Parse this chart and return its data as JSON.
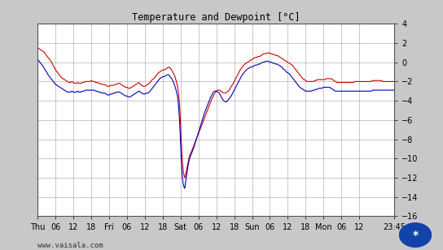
{
  "title": "Temperature and Dewpoint [°C]",
  "bg_color": "#c8c8c8",
  "plot_bg_color": "#ffffff",
  "grid_color": "#b0b0b0",
  "ylim": [
    -16,
    4
  ],
  "yticks": [
    -16,
    -14,
    -12,
    -10,
    -8,
    -6,
    -4,
    -2,
    0,
    2,
    4
  ],
  "xlabel_bottom": "www.vaisala.com",
  "line_red_color": "#cc0000",
  "line_blue_color": "#0000bb",
  "line_width": 0.8,
  "xtick_labels": [
    "Thu",
    "06",
    "12",
    "18",
    "Fri",
    "06",
    "12",
    "18",
    "Sat",
    "06",
    "12",
    "18",
    "Sun",
    "06",
    "12",
    "18",
    "Mon",
    "06",
    "12",
    "23:45"
  ],
  "xtick_positions": [
    0,
    6,
    12,
    18,
    24,
    30,
    36,
    42,
    48,
    54,
    60,
    66,
    72,
    78,
    84,
    90,
    96,
    102,
    108,
    119.75
  ],
  "x_total": 119.75,
  "red_data": [
    [
      0,
      1.5
    ],
    [
      0.5,
      1.4
    ],
    [
      1,
      1.3
    ],
    [
      1.5,
      1.2
    ],
    [
      2,
      1.1
    ],
    [
      2.5,
      0.9
    ],
    [
      3,
      0.7
    ],
    [
      3.5,
      0.5
    ],
    [
      4,
      0.3
    ],
    [
      4.5,
      0.1
    ],
    [
      5,
      -0.2
    ],
    [
      5.5,
      -0.5
    ],
    [
      6,
      -0.8
    ],
    [
      6.5,
      -1.0
    ],
    [
      7,
      -1.2
    ],
    [
      7.5,
      -1.4
    ],
    [
      8,
      -1.6
    ],
    [
      8.5,
      -1.7
    ],
    [
      9,
      -1.8
    ],
    [
      9.5,
      -1.9
    ],
    [
      10,
      -2.0
    ],
    [
      10.5,
      -2.1
    ],
    [
      11,
      -2.1
    ],
    [
      11.5,
      -2.0
    ],
    [
      12,
      -2.1
    ],
    [
      12.5,
      -2.2
    ],
    [
      13,
      -2.2
    ],
    [
      13.5,
      -2.1
    ],
    [
      14,
      -2.2
    ],
    [
      14.5,
      -2.2
    ],
    [
      15,
      -2.1
    ],
    [
      15.5,
      -2.1
    ],
    [
      16,
      -2.0
    ],
    [
      16.5,
      -2.0
    ],
    [
      17,
      -2.0
    ],
    [
      17.5,
      -2.0
    ],
    [
      18,
      -1.9
    ],
    [
      18.5,
      -2.0
    ],
    [
      19,
      -2.0
    ],
    [
      19.5,
      -2.1
    ],
    [
      20,
      -2.1
    ],
    [
      20.5,
      -2.2
    ],
    [
      21,
      -2.2
    ],
    [
      21.5,
      -2.3
    ],
    [
      22,
      -2.3
    ],
    [
      22.5,
      -2.3
    ],
    [
      23,
      -2.4
    ],
    [
      23.5,
      -2.5
    ],
    [
      24,
      -2.5
    ],
    [
      24.5,
      -2.4
    ],
    [
      25,
      -2.4
    ],
    [
      25.5,
      -2.4
    ],
    [
      26,
      -2.3
    ],
    [
      26.5,
      -2.3
    ],
    [
      27,
      -2.2
    ],
    [
      27.5,
      -2.2
    ],
    [
      28,
      -2.3
    ],
    [
      28.5,
      -2.4
    ],
    [
      29,
      -2.5
    ],
    [
      29.5,
      -2.6
    ],
    [
      30,
      -2.6
    ],
    [
      30.5,
      -2.7
    ],
    [
      31,
      -2.7
    ],
    [
      31.5,
      -2.6
    ],
    [
      32,
      -2.5
    ],
    [
      32.5,
      -2.4
    ],
    [
      33,
      -2.3
    ],
    [
      33.5,
      -2.2
    ],
    [
      34,
      -2.1
    ],
    [
      34.5,
      -2.3
    ],
    [
      35,
      -2.4
    ],
    [
      35.5,
      -2.5
    ],
    [
      36,
      -2.5
    ],
    [
      36.5,
      -2.4
    ],
    [
      37,
      -2.3
    ],
    [
      37.5,
      -2.2
    ],
    [
      38,
      -2.0
    ],
    [
      38.5,
      -1.8
    ],
    [
      39,
      -1.7
    ],
    [
      39.5,
      -1.5
    ],
    [
      40,
      -1.3
    ],
    [
      40.5,
      -1.1
    ],
    [
      41,
      -1.0
    ],
    [
      41.5,
      -0.9
    ],
    [
      42,
      -0.8
    ],
    [
      42.5,
      -0.8
    ],
    [
      43,
      -0.7
    ],
    [
      43.5,
      -0.6
    ],
    [
      44,
      -0.5
    ],
    [
      44.5,
      -0.6
    ],
    [
      45,
      -0.8
    ],
    [
      45.5,
      -1.1
    ],
    [
      46,
      -1.4
    ],
    [
      46.5,
      -1.9
    ],
    [
      47,
      -2.5
    ],
    [
      47.3,
      -3.2
    ],
    [
      47.6,
      -4.2
    ],
    [
      47.8,
      -5.2
    ],
    [
      48.0,
      -6.5
    ],
    [
      48.2,
      -8.0
    ],
    [
      48.4,
      -9.3
    ],
    [
      48.6,
      -10.3
    ],
    [
      48.8,
      -11.0
    ],
    [
      49.0,
      -11.5
    ],
    [
      49.2,
      -11.8
    ],
    [
      49.4,
      -12.0
    ],
    [
      49.6,
      -11.8
    ],
    [
      49.8,
      -11.5
    ],
    [
      50.0,
      -11.2
    ],
    [
      50.2,
      -10.9
    ],
    [
      50.4,
      -10.6
    ],
    [
      50.6,
      -10.3
    ],
    [
      50.8,
      -10.0
    ],
    [
      51.0,
      -9.7
    ],
    [
      51.5,
      -9.4
    ],
    [
      52.0,
      -9.0
    ],
    [
      52.5,
      -8.6
    ],
    [
      53.0,
      -8.2
    ],
    [
      53.5,
      -7.8
    ],
    [
      54.0,
      -7.4
    ],
    [
      54.5,
      -7.0
    ],
    [
      55.0,
      -6.6
    ],
    [
      55.5,
      -6.2
    ],
    [
      56.0,
      -5.8
    ],
    [
      56.5,
      -5.4
    ],
    [
      57.0,
      -5.0
    ],
    [
      57.5,
      -4.6
    ],
    [
      58.0,
      -4.2
    ],
    [
      58.5,
      -3.8
    ],
    [
      59.0,
      -3.5
    ],
    [
      59.5,
      -3.2
    ],
    [
      60.0,
      -3.0
    ],
    [
      60.5,
      -2.9
    ],
    [
      61.0,
      -2.9
    ],
    [
      61.5,
      -3.0
    ],
    [
      62.0,
      -3.1
    ],
    [
      62.5,
      -3.2
    ],
    [
      63.0,
      -3.2
    ],
    [
      63.5,
      -3.1
    ],
    [
      64.0,
      -3.0
    ],
    [
      64.5,
      -2.8
    ],
    [
      65.0,
      -2.5
    ],
    [
      65.5,
      -2.3
    ],
    [
      66.0,
      -2.0
    ],
    [
      66.5,
      -1.7
    ],
    [
      67.0,
      -1.4
    ],
    [
      67.5,
      -1.1
    ],
    [
      68.0,
      -0.8
    ],
    [
      68.5,
      -0.6
    ],
    [
      69.0,
      -0.4
    ],
    [
      69.5,
      -0.2
    ],
    [
      70.0,
      -0.1
    ],
    [
      70.5,
      0.0
    ],
    [
      71.0,
      0.1
    ],
    [
      71.5,
      0.2
    ],
    [
      72.0,
      0.3
    ],
    [
      72.5,
      0.4
    ],
    [
      73.0,
      0.5
    ],
    [
      73.5,
      0.5
    ],
    [
      74.0,
      0.6
    ],
    [
      74.5,
      0.6
    ],
    [
      75.0,
      0.7
    ],
    [
      75.5,
      0.8
    ],
    [
      76.0,
      0.9
    ],
    [
      76.5,
      0.9
    ],
    [
      77.0,
      0.9
    ],
    [
      77.5,
      1.0
    ],
    [
      78.0,
      0.9
    ],
    [
      78.5,
      0.9
    ],
    [
      79.0,
      0.8
    ],
    [
      79.5,
      0.8
    ],
    [
      80.0,
      0.7
    ],
    [
      80.5,
      0.7
    ],
    [
      81.0,
      0.6
    ],
    [
      81.5,
      0.5
    ],
    [
      82.0,
      0.4
    ],
    [
      82.5,
      0.3
    ],
    [
      83.0,
      0.2
    ],
    [
      83.5,
      0.1
    ],
    [
      84.0,
      0.0
    ],
    [
      84.5,
      -0.1
    ],
    [
      85.0,
      -0.2
    ],
    [
      85.5,
      -0.3
    ],
    [
      86.0,
      -0.5
    ],
    [
      86.5,
      -0.7
    ],
    [
      87.0,
      -0.9
    ],
    [
      87.5,
      -1.1
    ],
    [
      88.0,
      -1.3
    ],
    [
      88.5,
      -1.5
    ],
    [
      89.0,
      -1.7
    ],
    [
      89.5,
      -1.8
    ],
    [
      90.0,
      -1.9
    ],
    [
      90.5,
      -2.0
    ],
    [
      91.0,
      -2.0
    ],
    [
      91.5,
      -2.0
    ],
    [
      92.0,
      -2.0
    ],
    [
      92.5,
      -2.0
    ],
    [
      93.0,
      -1.9
    ],
    [
      93.5,
      -1.9
    ],
    [
      94.0,
      -1.8
    ],
    [
      94.5,
      -1.8
    ],
    [
      95.0,
      -1.8
    ],
    [
      95.5,
      -1.8
    ],
    [
      96.0,
      -1.8
    ],
    [
      96.5,
      -1.8
    ],
    [
      97.0,
      -1.7
    ],
    [
      97.5,
      -1.7
    ],
    [
      98.0,
      -1.7
    ],
    [
      98.5,
      -1.7
    ],
    [
      99.0,
      -1.8
    ],
    [
      99.5,
      -1.9
    ],
    [
      100.0,
      -2.0
    ],
    [
      100.5,
      -2.1
    ],
    [
      101.0,
      -2.1
    ],
    [
      101.5,
      -2.1
    ],
    [
      102.0,
      -2.1
    ],
    [
      102.5,
      -2.1
    ],
    [
      103.0,
      -2.1
    ],
    [
      103.5,
      -2.1
    ],
    [
      104.0,
      -2.1
    ],
    [
      104.5,
      -2.1
    ],
    [
      105.0,
      -2.1
    ],
    [
      105.5,
      -2.1
    ],
    [
      106.0,
      -2.1
    ],
    [
      106.5,
      -2.0
    ],
    [
      107.0,
      -2.0
    ],
    [
      107.5,
      -2.0
    ],
    [
      108.0,
      -2.0
    ],
    [
      108.5,
      -2.0
    ],
    [
      109.0,
      -2.0
    ],
    [
      109.5,
      -2.0
    ],
    [
      110.0,
      -2.0
    ],
    [
      110.5,
      -2.0
    ],
    [
      111.0,
      -2.0
    ],
    [
      111.5,
      -2.0
    ],
    [
      112.0,
      -2.0
    ],
    [
      112.5,
      -1.9
    ],
    [
      113.0,
      -1.9
    ],
    [
      113.5,
      -1.9
    ],
    [
      114.0,
      -1.9
    ],
    [
      114.5,
      -1.9
    ],
    [
      115.0,
      -1.9
    ],
    [
      115.5,
      -1.9
    ],
    [
      116.0,
      -2.0
    ],
    [
      116.5,
      -2.0
    ],
    [
      117.0,
      -2.0
    ],
    [
      117.5,
      -2.0
    ],
    [
      118.0,
      -2.0
    ],
    [
      118.5,
      -2.0
    ],
    [
      119.0,
      -2.0
    ],
    [
      119.75,
      -2.0
    ]
  ],
  "blue_data": [
    [
      0,
      0.3
    ],
    [
      0.5,
      0.1
    ],
    [
      1,
      -0.1
    ],
    [
      1.5,
      -0.3
    ],
    [
      2,
      -0.5
    ],
    [
      2.5,
      -0.8
    ],
    [
      3,
      -1.0
    ],
    [
      3.5,
      -1.3
    ],
    [
      4,
      -1.5
    ],
    [
      4.5,
      -1.7
    ],
    [
      5,
      -1.9
    ],
    [
      5.5,
      -2.1
    ],
    [
      6,
      -2.3
    ],
    [
      6.5,
      -2.4
    ],
    [
      7,
      -2.5
    ],
    [
      7.5,
      -2.6
    ],
    [
      8,
      -2.7
    ],
    [
      8.5,
      -2.8
    ],
    [
      9,
      -2.9
    ],
    [
      9.5,
      -3.0
    ],
    [
      10,
      -3.1
    ],
    [
      10.5,
      -3.1
    ],
    [
      11,
      -3.1
    ],
    [
      11.5,
      -3.0
    ],
    [
      12,
      -3.1
    ],
    [
      12.5,
      -3.1
    ],
    [
      13,
      -3.1
    ],
    [
      13.5,
      -3.0
    ],
    [
      14,
      -3.1
    ],
    [
      14.5,
      -3.1
    ],
    [
      15,
      -3.0
    ],
    [
      15.5,
      -3.0
    ],
    [
      16,
      -2.9
    ],
    [
      16.5,
      -2.9
    ],
    [
      17,
      -2.9
    ],
    [
      17.5,
      -2.9
    ],
    [
      18,
      -2.9
    ],
    [
      18.5,
      -2.9
    ],
    [
      19,
      -2.9
    ],
    [
      19.5,
      -3.0
    ],
    [
      20,
      -3.0
    ],
    [
      20.5,
      -3.1
    ],
    [
      21,
      -3.1
    ],
    [
      21.5,
      -3.2
    ],
    [
      22,
      -3.2
    ],
    [
      22.5,
      -3.2
    ],
    [
      23,
      -3.3
    ],
    [
      23.5,
      -3.4
    ],
    [
      24,
      -3.4
    ],
    [
      24.5,
      -3.3
    ],
    [
      25,
      -3.3
    ],
    [
      25.5,
      -3.2
    ],
    [
      26,
      -3.2
    ],
    [
      26.5,
      -3.1
    ],
    [
      27,
      -3.1
    ],
    [
      27.5,
      -3.1
    ],
    [
      28,
      -3.2
    ],
    [
      28.5,
      -3.3
    ],
    [
      29,
      -3.4
    ],
    [
      29.5,
      -3.5
    ],
    [
      30,
      -3.5
    ],
    [
      30.5,
      -3.6
    ],
    [
      31,
      -3.6
    ],
    [
      31.5,
      -3.5
    ],
    [
      32,
      -3.4
    ],
    [
      32.5,
      -3.3
    ],
    [
      33,
      -3.2
    ],
    [
      33.5,
      -3.1
    ],
    [
      34,
      -3.0
    ],
    [
      34.5,
      -3.1
    ],
    [
      35,
      -3.2
    ],
    [
      35.5,
      -3.3
    ],
    [
      36,
      -3.3
    ],
    [
      36.5,
      -3.2
    ],
    [
      37,
      -3.2
    ],
    [
      37.5,
      -3.1
    ],
    [
      38,
      -2.9
    ],
    [
      38.5,
      -2.7
    ],
    [
      39,
      -2.5
    ],
    [
      39.5,
      -2.3
    ],
    [
      40,
      -2.1
    ],
    [
      40.5,
      -1.9
    ],
    [
      41,
      -1.7
    ],
    [
      41.5,
      -1.6
    ],
    [
      42,
      -1.5
    ],
    [
      42.5,
      -1.5
    ],
    [
      43,
      -1.4
    ],
    [
      43.5,
      -1.3
    ],
    [
      44,
      -1.3
    ],
    [
      44.5,
      -1.5
    ],
    [
      45,
      -1.7
    ],
    [
      45.5,
      -2.0
    ],
    [
      46,
      -2.4
    ],
    [
      46.5,
      -2.9
    ],
    [
      47,
      -3.6
    ],
    [
      47.3,
      -4.5
    ],
    [
      47.6,
      -5.8
    ],
    [
      47.8,
      -7.0
    ],
    [
      48.0,
      -8.5
    ],
    [
      48.2,
      -10.0
    ],
    [
      48.4,
      -11.2
    ],
    [
      48.6,
      -12.0
    ],
    [
      48.8,
      -12.5
    ],
    [
      49.0,
      -12.8
    ],
    [
      49.2,
      -13.0
    ],
    [
      49.4,
      -13.1
    ],
    [
      49.5,
      -12.9
    ],
    [
      49.6,
      -12.6
    ],
    [
      49.8,
      -12.2
    ],
    [
      50.0,
      -11.8
    ],
    [
      50.2,
      -11.4
    ],
    [
      50.4,
      -11.0
    ],
    [
      50.6,
      -10.6
    ],
    [
      50.8,
      -10.3
    ],
    [
      51.0,
      -10.0
    ],
    [
      51.5,
      -9.6
    ],
    [
      52.0,
      -9.2
    ],
    [
      52.5,
      -8.8
    ],
    [
      53.0,
      -8.3
    ],
    [
      53.5,
      -7.8
    ],
    [
      54.0,
      -7.3
    ],
    [
      54.5,
      -6.8
    ],
    [
      55.0,
      -6.3
    ],
    [
      55.5,
      -5.8
    ],
    [
      56.0,
      -5.3
    ],
    [
      56.5,
      -4.9
    ],
    [
      57.0,
      -4.5
    ],
    [
      57.5,
      -4.1
    ],
    [
      58.0,
      -3.7
    ],
    [
      58.5,
      -3.4
    ],
    [
      59.0,
      -3.1
    ],
    [
      59.5,
      -3.0
    ],
    [
      60.0,
      -3.0
    ],
    [
      60.5,
      -3.1
    ],
    [
      61.0,
      -3.2
    ],
    [
      61.5,
      -3.5
    ],
    [
      62.0,
      -3.8
    ],
    [
      62.5,
      -4.0
    ],
    [
      63.0,
      -4.1
    ],
    [
      63.5,
      -4.1
    ],
    [
      64.0,
      -3.9
    ],
    [
      64.5,
      -3.7
    ],
    [
      65.0,
      -3.5
    ],
    [
      65.5,
      -3.2
    ],
    [
      66.0,
      -2.9
    ],
    [
      66.5,
      -2.6
    ],
    [
      67.0,
      -2.3
    ],
    [
      67.5,
      -2.0
    ],
    [
      68.0,
      -1.7
    ],
    [
      68.5,
      -1.4
    ],
    [
      69.0,
      -1.2
    ],
    [
      69.5,
      -1.0
    ],
    [
      70.0,
      -0.8
    ],
    [
      70.5,
      -0.7
    ],
    [
      71.0,
      -0.6
    ],
    [
      71.5,
      -0.5
    ],
    [
      72.0,
      -0.5
    ],
    [
      72.5,
      -0.4
    ],
    [
      73.0,
      -0.3
    ],
    [
      73.5,
      -0.3
    ],
    [
      74.0,
      -0.2
    ],
    [
      74.5,
      -0.2
    ],
    [
      75.0,
      -0.1
    ],
    [
      75.5,
      0.0
    ],
    [
      76.0,
      0.0
    ],
    [
      76.5,
      0.1
    ],
    [
      77.0,
      0.1
    ],
    [
      77.5,
      0.1
    ],
    [
      78.0,
      0.0
    ],
    [
      78.5,
      0.0
    ],
    [
      79.0,
      -0.1
    ],
    [
      79.5,
      -0.1
    ],
    [
      80.0,
      -0.2
    ],
    [
      80.5,
      -0.2
    ],
    [
      81.0,
      -0.3
    ],
    [
      81.5,
      -0.4
    ],
    [
      82.0,
      -0.5
    ],
    [
      82.5,
      -0.7
    ],
    [
      83.0,
      -0.8
    ],
    [
      83.5,
      -1.0
    ],
    [
      84.0,
      -1.1
    ],
    [
      84.5,
      -1.2
    ],
    [
      85.0,
      -1.4
    ],
    [
      85.5,
      -1.6
    ],
    [
      86.0,
      -1.8
    ],
    [
      86.5,
      -2.0
    ],
    [
      87.0,
      -2.2
    ],
    [
      87.5,
      -2.4
    ],
    [
      88.0,
      -2.6
    ],
    [
      88.5,
      -2.7
    ],
    [
      89.0,
      -2.8
    ],
    [
      89.5,
      -2.9
    ],
    [
      90.0,
      -3.0
    ],
    [
      90.5,
      -3.0
    ],
    [
      91.0,
      -3.0
    ],
    [
      91.5,
      -3.0
    ],
    [
      92.0,
      -3.0
    ],
    [
      92.5,
      -2.9
    ],
    [
      93.0,
      -2.9
    ],
    [
      93.5,
      -2.8
    ],
    [
      94.0,
      -2.8
    ],
    [
      94.5,
      -2.7
    ],
    [
      95.0,
      -2.7
    ],
    [
      95.5,
      -2.7
    ],
    [
      96.0,
      -2.6
    ],
    [
      96.5,
      -2.6
    ],
    [
      97.0,
      -2.6
    ],
    [
      97.5,
      -2.6
    ],
    [
      98.0,
      -2.6
    ],
    [
      98.5,
      -2.7
    ],
    [
      99.0,
      -2.8
    ],
    [
      99.5,
      -2.9
    ],
    [
      100.0,
      -3.0
    ],
    [
      100.5,
      -3.0
    ],
    [
      101.0,
      -3.0
    ],
    [
      101.5,
      -3.0
    ],
    [
      102.0,
      -3.0
    ],
    [
      102.5,
      -3.0
    ],
    [
      103.0,
      -3.0
    ],
    [
      103.5,
      -3.0
    ],
    [
      104.0,
      -3.0
    ],
    [
      104.5,
      -3.0
    ],
    [
      105.0,
      -3.0
    ],
    [
      105.5,
      -3.0
    ],
    [
      106.0,
      -3.0
    ],
    [
      106.5,
      -3.0
    ],
    [
      107.0,
      -3.0
    ],
    [
      107.5,
      -3.0
    ],
    [
      108.0,
      -3.0
    ],
    [
      108.5,
      -3.0
    ],
    [
      109.0,
      -3.0
    ],
    [
      109.5,
      -3.0
    ],
    [
      110.0,
      -3.0
    ],
    [
      110.5,
      -3.0
    ],
    [
      111.0,
      -3.0
    ],
    [
      111.5,
      -3.0
    ],
    [
      112.0,
      -3.0
    ],
    [
      112.5,
      -2.9
    ],
    [
      113.0,
      -2.9
    ],
    [
      113.5,
      -2.9
    ],
    [
      114.0,
      -2.9
    ],
    [
      114.5,
      -2.9
    ],
    [
      115.0,
      -2.9
    ],
    [
      115.5,
      -2.9
    ],
    [
      116.0,
      -2.9
    ],
    [
      116.5,
      -2.9
    ],
    [
      117.0,
      -2.9
    ],
    [
      117.5,
      -2.9
    ],
    [
      118.0,
      -2.9
    ],
    [
      118.5,
      -2.9
    ],
    [
      119.0,
      -2.9
    ],
    [
      119.75,
      -2.9
    ]
  ]
}
